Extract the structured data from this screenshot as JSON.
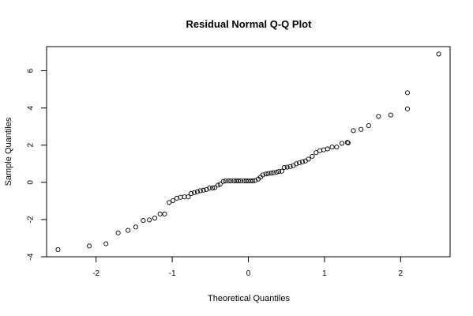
{
  "chart_data": {
    "type": "scatter",
    "title": "Residual Normal Q-Q Plot",
    "xlabel": "Theoretical Quantiles",
    "ylabel": "Sample Quantiles",
    "xlim": [
      -2.65,
      2.65
    ],
    "ylim": [
      -4.0,
      7.3
    ],
    "x_ticks": [
      -2,
      -1,
      0,
      1,
      2
    ],
    "y_ticks": [
      -4,
      -2,
      0,
      2,
      4,
      6
    ],
    "grid": false,
    "legend": "none",
    "point_color": "#000000",
    "points": [
      [
        -2.5,
        -3.62
      ],
      [
        -2.09,
        -3.42
      ],
      [
        -1.87,
        -3.3
      ],
      [
        -1.71,
        -2.72
      ],
      [
        -1.58,
        -2.58
      ],
      [
        -1.48,
        -2.4
      ],
      [
        -1.38,
        -2.05
      ],
      [
        -1.3,
        -2.02
      ],
      [
        -1.23,
        -1.92
      ],
      [
        -1.16,
        -1.7
      ],
      [
        -1.1,
        -1.7
      ],
      [
        -1.04,
        -1.08
      ],
      [
        -0.99,
        -0.98
      ],
      [
        -0.94,
        -0.85
      ],
      [
        -0.89,
        -0.8
      ],
      [
        -0.84,
        -0.78
      ],
      [
        -0.79,
        -0.78
      ],
      [
        -0.75,
        -0.6
      ],
      [
        -0.71,
        -0.55
      ],
      [
        -0.67,
        -0.5
      ],
      [
        -0.63,
        -0.45
      ],
      [
        -0.59,
        -0.42
      ],
      [
        -0.55,
        -0.38
      ],
      [
        -0.51,
        -0.3
      ],
      [
        -0.47,
        -0.3
      ],
      [
        -0.44,
        -0.28
      ],
      [
        -0.4,
        -0.15
      ],
      [
        -0.37,
        -0.1
      ],
      [
        -0.33,
        0.05
      ],
      [
        -0.3,
        0.08
      ],
      [
        -0.26,
        0.08
      ],
      [
        -0.23,
        0.08
      ],
      [
        -0.19,
        0.08
      ],
      [
        -0.16,
        0.08
      ],
      [
        -0.13,
        0.08
      ],
      [
        -0.1,
        0.08
      ],
      [
        -0.06,
        0.08
      ],
      [
        -0.03,
        0.08
      ],
      [
        0.0,
        0.08
      ],
      [
        0.03,
        0.08
      ],
      [
        0.06,
        0.08
      ],
      [
        0.09,
        0.1
      ],
      [
        0.13,
        0.18
      ],
      [
        0.16,
        0.28
      ],
      [
        0.19,
        0.4
      ],
      [
        0.23,
        0.45
      ],
      [
        0.26,
        0.48
      ],
      [
        0.3,
        0.5
      ],
      [
        0.33,
        0.52
      ],
      [
        0.37,
        0.55
      ],
      [
        0.4,
        0.58
      ],
      [
        0.44,
        0.6
      ],
      [
        0.47,
        0.8
      ],
      [
        0.51,
        0.82
      ],
      [
        0.55,
        0.85
      ],
      [
        0.59,
        0.9
      ],
      [
        0.63,
        1.0
      ],
      [
        0.67,
        1.05
      ],
      [
        0.71,
        1.1
      ],
      [
        0.75,
        1.15
      ],
      [
        0.79,
        1.25
      ],
      [
        0.84,
        1.4
      ],
      [
        0.89,
        1.6
      ],
      [
        0.94,
        1.7
      ],
      [
        0.99,
        1.75
      ],
      [
        1.04,
        1.8
      ],
      [
        1.1,
        1.9
      ],
      [
        1.16,
        1.9
      ],
      [
        1.23,
        2.1
      ],
      [
        1.3,
        2.15
      ],
      [
        1.38,
        2.78
      ],
      [
        1.48,
        2.85
      ],
      [
        1.58,
        3.05
      ],
      [
        1.71,
        3.55
      ],
      [
        1.87,
        3.62
      ],
      [
        2.09,
        3.95
      ],
      [
        1.31,
        2.12
      ],
      [
        2.09,
        4.82
      ],
      [
        2.5,
        6.9
      ]
    ]
  }
}
